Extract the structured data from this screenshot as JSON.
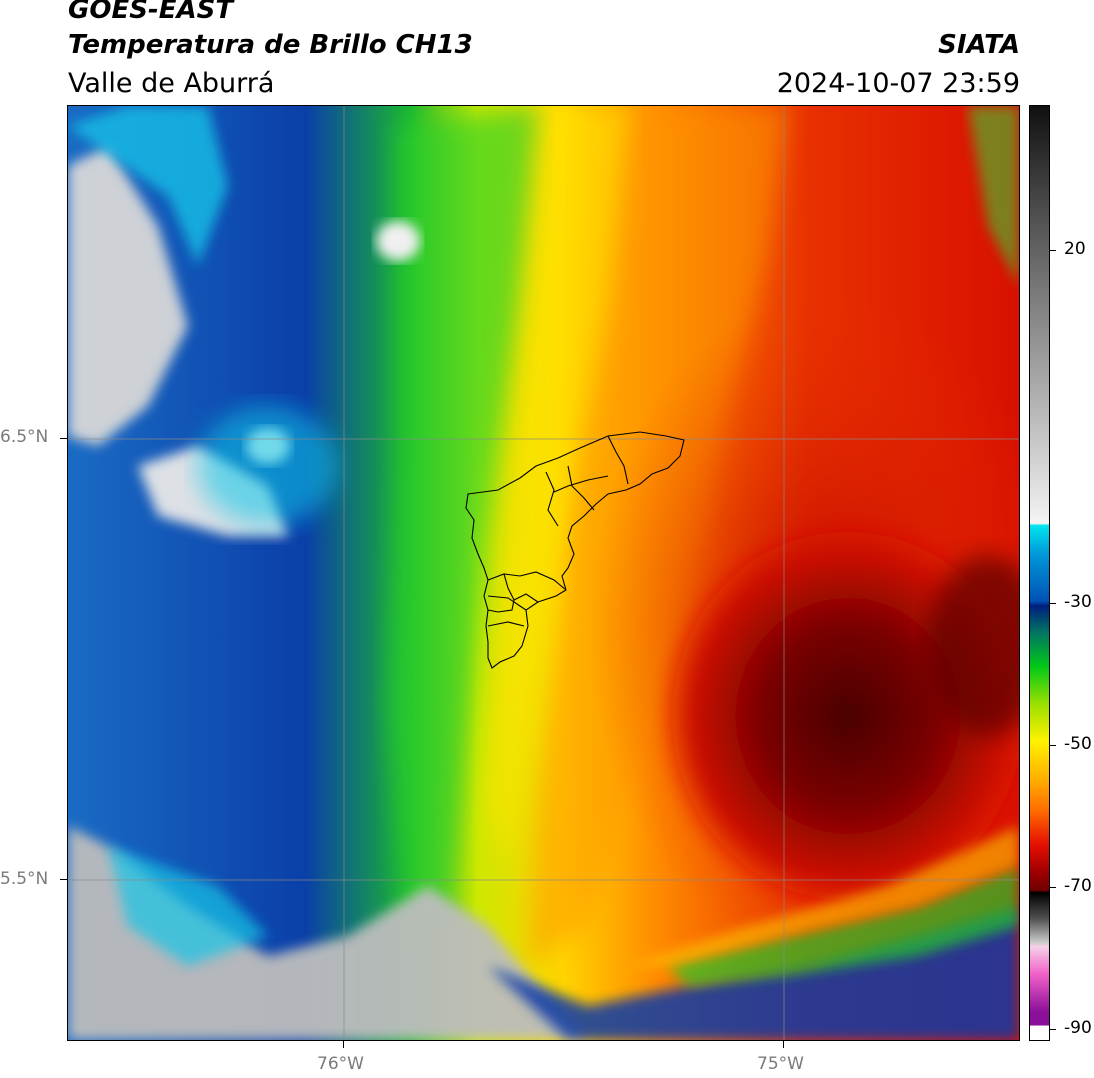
{
  "header": {
    "satellite": "GOES-EAST",
    "product": "Temperatura de Brillo CH13",
    "region": "Valle de Aburrá",
    "org": "SIATA",
    "datetime": "2024-10-07 23:59"
  },
  "axes": {
    "lat_ticks": [
      "6.5°N",
      "5.5°N"
    ],
    "lon_ticks": [
      "76°W",
      "75°W"
    ]
  },
  "colorbar": {
    "ticks": [
      "20",
      "-30",
      "-50",
      "-70",
      "-90"
    ],
    "vmin": -92,
    "vmax": 37,
    "colors": {
      "warm_gray": "#f2f2f2",
      "cyan": "#00e5f0",
      "blue": "#0052b5",
      "dark_blue": "#001f80",
      "green": "#00c818",
      "yellow": "#fff200",
      "orange": "#ff8c00",
      "red": "#e61000",
      "dark_red": "#6e0000",
      "pink": "#f060c8",
      "purple": "#8a109a"
    }
  },
  "map": {
    "outline": "Valle de Aburrá municipalities boundary",
    "colors": {
      "clear_sky": "#d9d9d9",
      "low_cloud_cyan": "#19c8e8",
      "mid_blue": "#0a3fa8",
      "green": "#1ec828",
      "yellow": "#f5f000",
      "orange": "#ff8a00",
      "red": "#e01000",
      "core": "#600000"
    }
  }
}
